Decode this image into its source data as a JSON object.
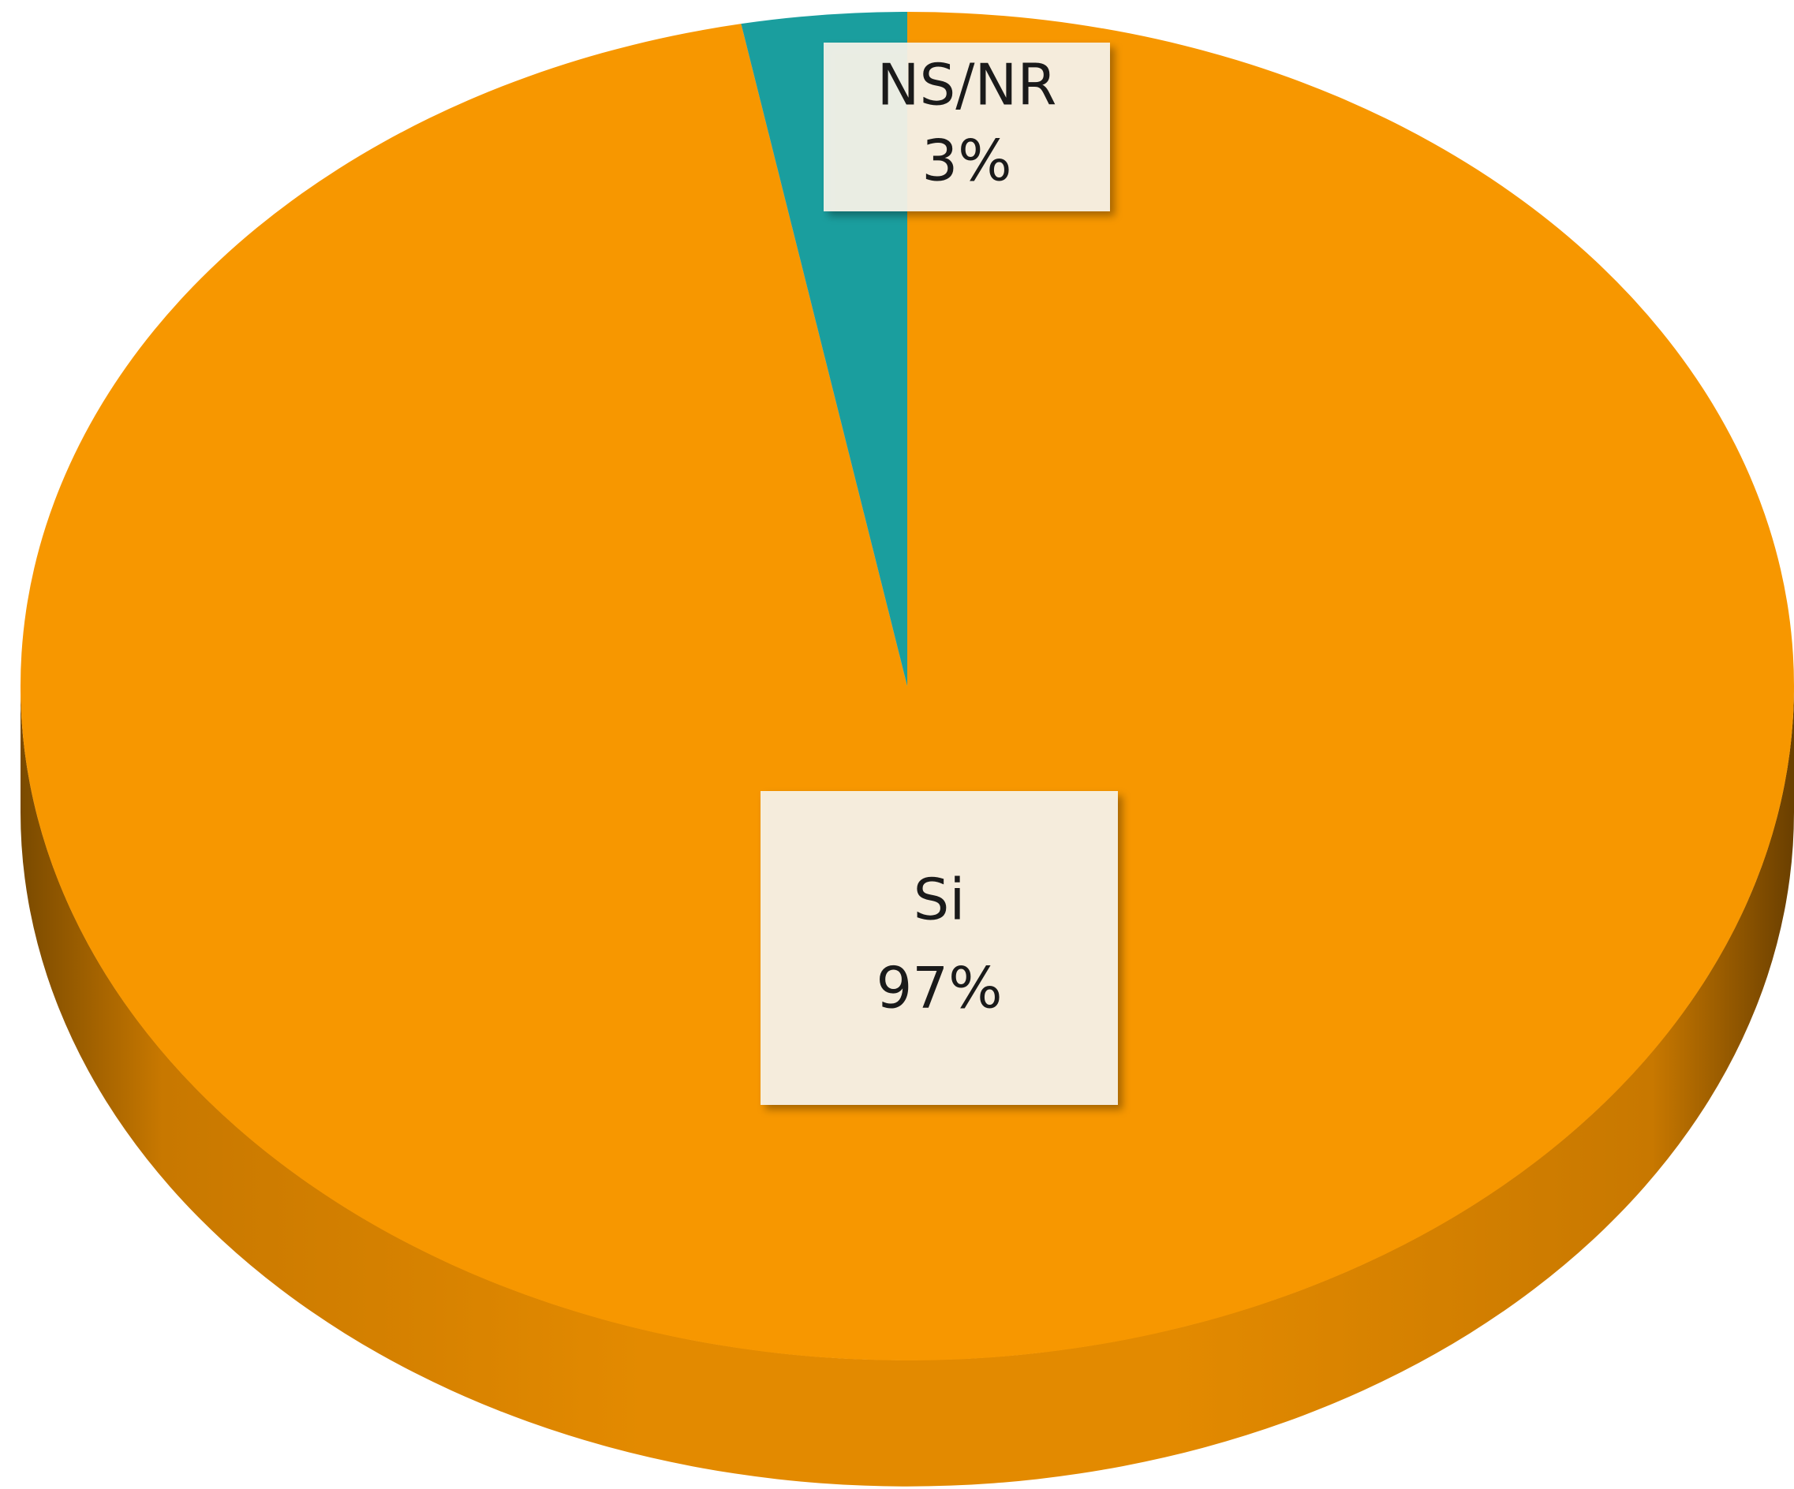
{
  "chart_data": {
    "type": "pie",
    "categories": [
      "Si",
      "NS/NR"
    ],
    "values": [
      97,
      3
    ],
    "value_labels": [
      "97%",
      "3%"
    ],
    "colors": [
      "#f79700",
      "#1a9e9e"
    ]
  }
}
